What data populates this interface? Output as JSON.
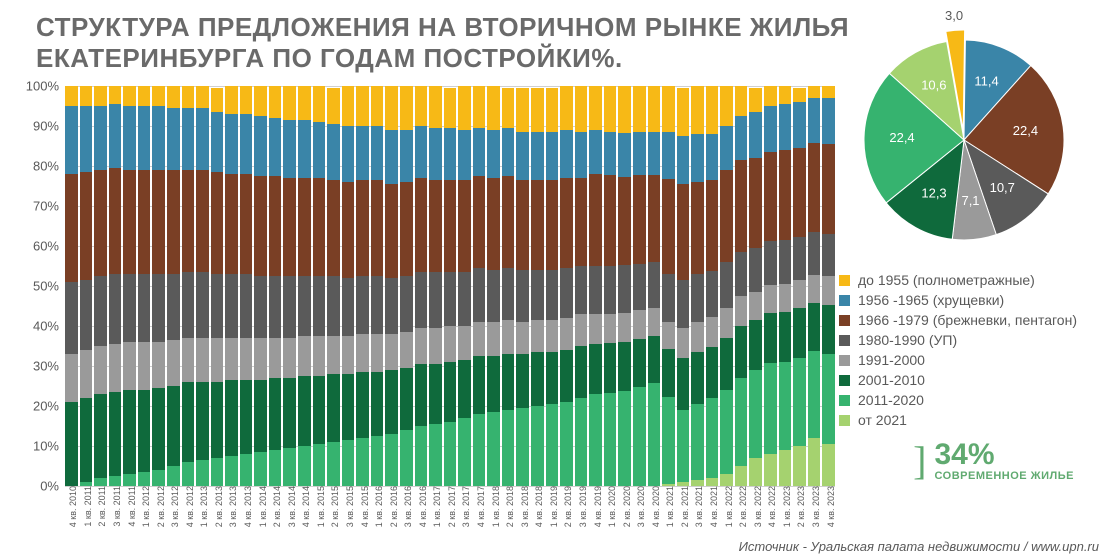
{
  "title_line1": "СТРУКТУРА ПРЕДЛОЖЕНИЯ НА ВТОРИЧНОМ РЫНКЕ ЖИЛЬЯ",
  "title_line2": "ЕКАТЕРИНБУРГА ПО ГОДАМ ПОСТРОЙКИ%.",
  "source": "Источник - Уральская палата недвижимости / www.upn.ru",
  "modern_pct": "34%",
  "modern_label": "СОВРЕМЕННОЕ ЖИЛЬЕ",
  "categories": [
    {
      "key": "pre1955",
      "label": "до 1955 (полнометражные)",
      "color": "#f7b916"
    },
    {
      "key": "y56_65",
      "label": "1956 -1965 (хрущевки)",
      "color": "#3a85a8"
    },
    {
      "key": "y66_79",
      "label": "1966 -1979 (брежневки, пентагон)",
      "color": "#7a3f25"
    },
    {
      "key": "y80_90",
      "label": "1980-1990 (УП)",
      "color": "#5a5a5a"
    },
    {
      "key": "y91_00",
      "label": "1991-2000",
      "color": "#9a9a9a"
    },
    {
      "key": "y01_10",
      "label": "2001-2010",
      "color": "#0f6a3c"
    },
    {
      "key": "y11_20",
      "label": "2011-2020",
      "color": "#36b36f"
    },
    {
      "key": "from21",
      "label": "от 2021",
      "color": "#a5d26f"
    }
  ],
  "pie": {
    "slices": [
      {
        "key": "pre1955",
        "value": 3.0,
        "label": "3,0"
      },
      {
        "key": "y56_65",
        "value": 11.4,
        "label": "11,4"
      },
      {
        "key": "y66_79",
        "value": 22.4,
        "label": "22,4"
      },
      {
        "key": "y80_90",
        "value": 10.7,
        "label": "10,7"
      },
      {
        "key": "y91_00",
        "value": 7.1,
        "label": "7,1"
      },
      {
        "key": "y01_10",
        "value": 12.3,
        "label": "12,3"
      },
      {
        "key": "y11_20",
        "value": 22.4,
        "label": "22,4"
      },
      {
        "key": "from21",
        "value": 10.6,
        "label": "10,6"
      }
    ],
    "explode": {
      "pre1955": 10
    },
    "start_angle_deg": -100,
    "label_fontsize": 13,
    "label_color_light": "#ffffff",
    "label_color_dark": "#595959"
  },
  "bar_chart": {
    "ylim": [
      0,
      100
    ],
    "ytick_step": 10,
    "ytick_suffix": "%",
    "grid_color": "#cfcfcf",
    "background": "#ffffff",
    "stack_order": [
      "from21",
      "y11_20",
      "y01_10",
      "y91_00",
      "y80_90",
      "y66_79",
      "y56_65",
      "pre1955"
    ],
    "periods": [
      "4 кв. 2010",
      "1 кв. 2011",
      "2 кв. 2011",
      "3 кв. 2011",
      "4 кв. 2011",
      "1 кв. 2012",
      "2 кв. 2012",
      "3 кв. 2012",
      "4 кв. 2012",
      "1 кв. 2013",
      "2 кв. 2013",
      "3 кв. 2013",
      "4 кв. 2013",
      "1 кв. 2014",
      "2 кв. 2014",
      "3 кв. 2014",
      "4 кв. 2014",
      "1 кв. 2015",
      "2 кв. 2015",
      "3 кв. 2015",
      "4 кв. 2015",
      "1 кв. 2016",
      "2 кв. 2016",
      "3 кв. 2016",
      "4 кв. 2016",
      "1 кв. 2017",
      "2 кв. 2017",
      "3 кв. 2017",
      "4 кв. 2017",
      "1 кв. 2018",
      "2 кв. 2018",
      "3 кв. 2018",
      "4 кв. 2018",
      "1 кв. 2019",
      "2 кв. 2019",
      "3 кв. 2019",
      "4 кв. 2019",
      "1 кв. 2020",
      "2 кв. 2020",
      "3 кв. 2020",
      "4 кв. 2020",
      "1 кв. 2021",
      "2 кв. 2021",
      "3 кв. 2021",
      "4 кв. 2021",
      "1 кв. 2022",
      "2 кв. 2022",
      "3 кв. 2022",
      "4 кв. 2022",
      "1 кв. 2023",
      "2 кв. 2023",
      "3 кв. 2023",
      "4 кв. 2023"
    ],
    "series": {
      "from21": [
        0,
        0,
        0,
        0,
        0,
        0,
        0,
        0,
        0,
        0,
        0,
        0,
        0,
        0,
        0,
        0,
        0,
        0,
        0,
        0,
        0,
        0,
        0,
        0,
        0,
        0,
        0,
        0,
        0,
        0,
        0,
        0,
        0,
        0,
        0,
        0,
        0,
        0,
        0,
        0,
        0,
        0.5,
        1,
        1.5,
        2,
        3,
        5,
        7,
        8,
        9,
        10,
        12,
        10.6
      ],
      "y11_20": [
        0,
        1,
        2,
        2.5,
        3,
        3.5,
        4,
        5,
        6,
        6.5,
        7,
        7.5,
        8,
        8.5,
        9,
        9.5,
        10,
        10.5,
        11,
        11.5,
        12,
        12.5,
        13,
        14,
        15,
        15.5,
        16,
        17,
        18,
        18.5,
        19,
        19.5,
        20,
        20.5,
        21,
        22,
        23,
        23.5,
        24,
        25,
        26,
        22,
        18,
        19,
        20,
        21,
        22,
        22,
        23,
        22,
        22,
        22,
        22.4
      ],
      "y01_10": [
        21,
        21,
        21,
        21,
        21,
        20.5,
        20.5,
        20,
        20,
        19.5,
        19,
        19,
        18.5,
        18,
        18,
        17.5,
        17.5,
        17,
        17,
        16.5,
        16.5,
        16,
        16,
        15.5,
        15.5,
        15,
        15,
        14.5,
        14.5,
        14,
        14,
        13.5,
        13.5,
        13,
        13,
        13,
        12.5,
        12.5,
        12.5,
        12,
        12,
        12,
        13,
        13,
        13,
        13,
        13,
        12.5,
        12.5,
        12.5,
        12.5,
        12.3,
        12.3
      ],
      "y91_00": [
        12,
        12,
        12,
        12,
        12,
        12,
        11.5,
        11.5,
        11,
        11,
        11,
        10.5,
        10.5,
        10.5,
        10,
        10,
        10,
        10,
        9.5,
        9.5,
        9.5,
        9.5,
        9,
        9,
        9,
        9,
        9,
        8.5,
        8.5,
        8.5,
        8.5,
        8,
        8,
        8,
        8,
        8,
        7.5,
        7.5,
        7.5,
        7.5,
        7,
        7,
        7.5,
        7.5,
        7.5,
        7.5,
        7.5,
        7,
        7,
        7,
        7,
        7.1,
        7.1
      ],
      "y80_90": [
        18,
        17.5,
        17.5,
        17.5,
        17,
        17,
        17,
        16.5,
        16.5,
        16.5,
        16,
        16,
        16,
        15.5,
        15.5,
        15.5,
        15,
        15,
        15,
        14.5,
        14.5,
        14.5,
        14,
        14,
        14,
        14,
        13.5,
        13.5,
        13.5,
        13,
        13,
        13,
        12.5,
        12.5,
        12.5,
        12,
        12,
        12,
        12,
        11.5,
        11.5,
        12,
        12,
        12,
        11.5,
        11.5,
        11,
        11,
        11,
        11,
        10.7,
        10.7,
        10.7
      ],
      "y66_79": [
        27,
        27,
        26.5,
        26.5,
        26,
        26,
        26,
        26,
        25.5,
        25.5,
        25.5,
        25,
        25,
        25,
        25,
        24.5,
        24.5,
        24.5,
        24,
        24,
        24,
        24,
        23.5,
        23.5,
        23.5,
        23,
        23,
        23,
        23,
        23,
        23,
        22.5,
        22.5,
        22.5,
        22.5,
        22,
        23,
        23,
        22.5,
        22.5,
        22,
        24,
        24,
        23,
        23,
        23,
        23,
        22.5,
        22.5,
        22.5,
        22.4,
        22.4,
        22.4
      ],
      "y56_65": [
        17,
        16.5,
        16,
        16,
        16,
        16,
        16,
        15.5,
        15.5,
        15.5,
        15,
        15,
        15,
        15,
        14.5,
        14.5,
        14.5,
        14,
        14,
        14,
        13.5,
        13.5,
        13.5,
        13,
        13,
        13,
        13,
        12.5,
        12,
        12,
        12,
        12,
        12,
        12,
        12,
        11.5,
        11,
        11,
        11,
        11,
        11,
        12,
        12,
        12,
        11.5,
        11,
        11,
        11.5,
        11.5,
        11.5,
        11.4,
        11.4,
        11.4
      ],
      "pre1955": [
        5,
        5,
        5,
        4.5,
        5,
        5,
        5,
        5.5,
        5.5,
        5.5,
        6,
        7,
        7,
        7.5,
        8,
        8.5,
        8.5,
        9,
        9,
        10,
        10,
        10,
        11,
        11,
        10,
        10.5,
        10,
        11,
        10.5,
        11,
        10,
        11,
        11,
        11,
        11,
        11.5,
        11,
        11.5,
        12,
        11.5,
        11.5,
        11.5,
        12,
        12,
        12,
        10,
        7.5,
        6,
        5,
        4.5,
        3.6,
        3.1,
        3
      ]
    }
  }
}
